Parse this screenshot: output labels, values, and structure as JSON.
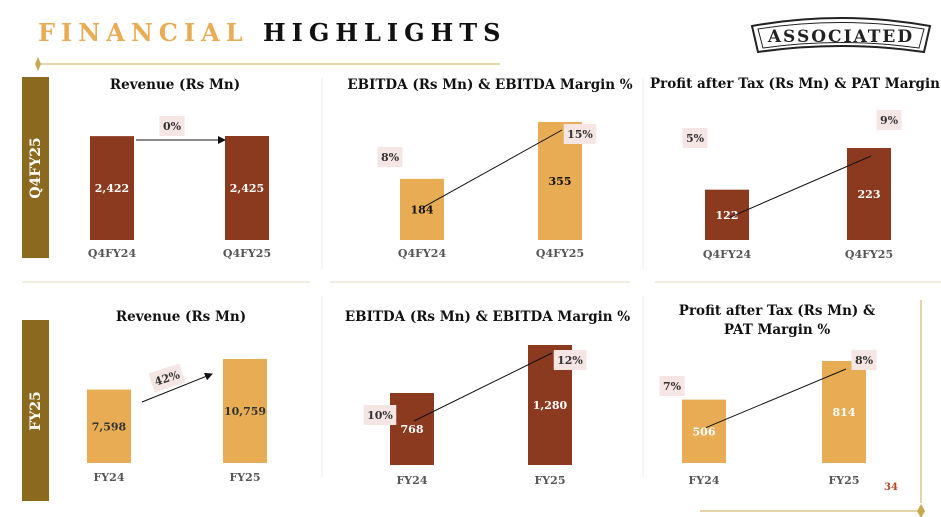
{
  "header": {
    "title_part1": "FINANCIAL",
    "title_part2": "HIGHLIGHTS",
    "logo_text": "ASSOCIATED"
  },
  "sections": {
    "q4": {
      "label": "Q4FY25"
    },
    "fy": {
      "label": "FY25"
    }
  },
  "page_number": "34",
  "colors": {
    "dark": "#8b3a1f",
    "light": "#e8ad54",
    "gold": "#8b6a1f",
    "badge": "#f5e6e4"
  },
  "chart_data": [
    {
      "type": "bar",
      "title": "Revenue (Rs Mn)",
      "categories": [
        "Q4FY24",
        "Q4FY25"
      ],
      "values": [
        2422,
        2425
      ],
      "value_labels": [
        "2,422",
        "2,425"
      ],
      "growth_label": "0%",
      "color": "dark"
    },
    {
      "type": "bar",
      "title": "EBITDA (Rs Mn) & EBITDA Margin %",
      "categories": [
        "Q4FY24",
        "Q4FY25"
      ],
      "values": [
        184,
        355
      ],
      "value_labels": [
        "184",
        "355"
      ],
      "margin_labels": [
        "8%",
        "15%"
      ],
      "margin_values": [
        8,
        15
      ],
      "color": "light"
    },
    {
      "type": "bar",
      "title": "Profit after Tax (Rs Mn) & PAT Margin %",
      "categories": [
        "Q4FY24",
        "Q4FY25"
      ],
      "values": [
        122,
        223
      ],
      "value_labels": [
        "122",
        "223"
      ],
      "margin_labels": [
        "5%",
        "9%"
      ],
      "margin_values": [
        5,
        9
      ],
      "color": "dark"
    },
    {
      "type": "bar",
      "title": "Revenue (Rs Mn)",
      "categories": [
        "FY24",
        "FY25"
      ],
      "values": [
        7598,
        10759
      ],
      "value_labels": [
        "7,598",
        "10,759"
      ],
      "growth_label": "42%",
      "color": "light"
    },
    {
      "type": "bar",
      "title": "EBITDA (Rs Mn) & EBITDA Margin %",
      "categories": [
        "FY24",
        "FY25"
      ],
      "values": [
        768,
        1280
      ],
      "value_labels": [
        "768",
        "1,280"
      ],
      "margin_labels": [
        "10%",
        "12%"
      ],
      "margin_values": [
        10,
        12
      ],
      "color": "dark"
    },
    {
      "type": "bar",
      "title": "Profit after Tax (Rs Mn) & PAT Margin %",
      "categories": [
        "FY24",
        "FY25"
      ],
      "values": [
        506,
        814
      ],
      "value_labels": [
        "506",
        "814"
      ],
      "margin_labels": [
        "7%",
        "8%"
      ],
      "margin_values": [
        7,
        8
      ],
      "color": "light"
    }
  ]
}
